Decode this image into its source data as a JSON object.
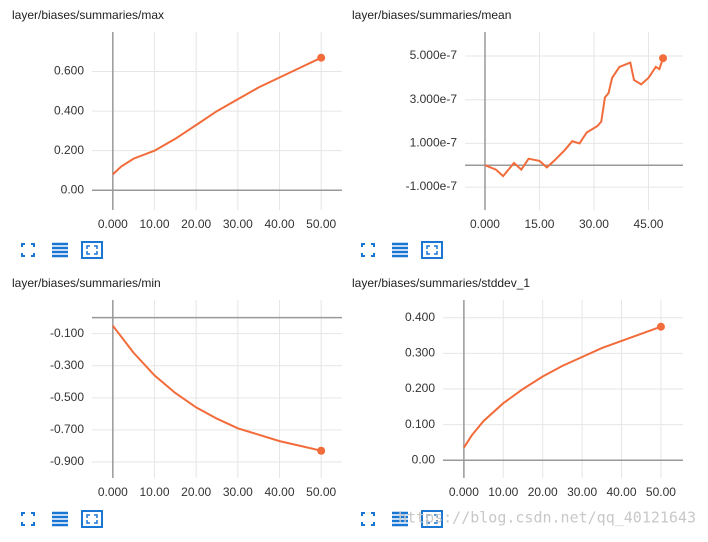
{
  "chart_data": [
    {
      "type": "line",
      "title": "layer/biases/summaries/max",
      "color": "#f26b3a",
      "x": [
        0,
        2,
        5,
        10,
        15,
        20,
        25,
        30,
        35,
        40,
        45,
        50
      ],
      "values": [
        0.08,
        0.12,
        0.16,
        0.2,
        0.26,
        0.33,
        0.4,
        0.46,
        0.52,
        0.57,
        0.62,
        0.67
      ],
      "xlim": [
        -5,
        55
      ],
      "ylim": [
        -0.1,
        0.8
      ],
      "xticks": [
        {
          "value": 0,
          "label": "0.000"
        },
        {
          "value": 10,
          "label": "10.00"
        },
        {
          "value": 20,
          "label": "20.00"
        },
        {
          "value": 30,
          "label": "30.00"
        },
        {
          "value": 40,
          "label": "40.00"
        },
        {
          "value": 50,
          "label": "50.00"
        }
      ],
      "yticks": [
        {
          "value": 0,
          "label": "0.00"
        },
        {
          "value": 0.2,
          "label": "0.200"
        },
        {
          "value": 0.4,
          "label": "0.400"
        },
        {
          "value": 0.6,
          "label": "0.600"
        }
      ],
      "grid": true
    },
    {
      "type": "line",
      "title": "layer/biases/summaries/mean",
      "color": "#f26b3a",
      "x": [
        0,
        3,
        5,
        8,
        10,
        12,
        15,
        17,
        19,
        22,
        24,
        26,
        28,
        31,
        32,
        33,
        34,
        35,
        37,
        40,
        41,
        43,
        45,
        47,
        48,
        49
      ],
      "values": [
        0,
        -2e-08,
        -5e-08,
        1e-08,
        -2e-08,
        3e-08,
        2e-08,
        -1e-08,
        2e-08,
        7e-08,
        1.1e-07,
        1e-07,
        1.5e-07,
        1.8e-07,
        2e-07,
        3.1e-07,
        3.3e-07,
        4e-07,
        4.5e-07,
        4.7e-07,
        3.9e-07,
        3.7e-07,
        4e-07,
        4.5e-07,
        4.4e-07,
        4.9e-07
      ],
      "xlim": [
        -5.5,
        54.5
      ],
      "ylim": [
        -2.05e-07,
        6.1e-07
      ],
      "xticks": [
        {
          "value": 0,
          "label": "0.000"
        },
        {
          "value": 15,
          "label": "15.00"
        },
        {
          "value": 30,
          "label": "30.00"
        },
        {
          "value": 45,
          "label": "45.00"
        }
      ],
      "yticks": [
        {
          "value": -1e-07,
          "label": "-1.000e-7"
        },
        {
          "value": 1e-07,
          "label": "1.000e-7"
        },
        {
          "value": 3e-07,
          "label": "3.000e-7"
        },
        {
          "value": 5e-07,
          "label": "5.000e-7"
        }
      ],
      "grid": true
    },
    {
      "type": "line",
      "title": "layer/biases/summaries/min",
      "color": "#f26b3a",
      "x": [
        0,
        5,
        10,
        15,
        20,
        25,
        30,
        35,
        40,
        45,
        50
      ],
      "values": [
        -0.05,
        -0.22,
        -0.36,
        -0.47,
        -0.56,
        -0.63,
        -0.69,
        -0.73,
        -0.77,
        -0.8,
        -0.83
      ],
      "xlim": [
        -5,
        55
      ],
      "ylim": [
        -1.0,
        0.11
      ],
      "xticks": [
        {
          "value": 0,
          "label": "0.000"
        },
        {
          "value": 10,
          "label": "10.00"
        },
        {
          "value": 20,
          "label": "20.00"
        },
        {
          "value": 30,
          "label": "30.00"
        },
        {
          "value": 40,
          "label": "40.00"
        },
        {
          "value": 50,
          "label": "50.00"
        }
      ],
      "yticks": [
        {
          "value": -0.1,
          "label": "-0.100"
        },
        {
          "value": -0.3,
          "label": "-0.300"
        },
        {
          "value": -0.5,
          "label": "-0.500"
        },
        {
          "value": -0.7,
          "label": "-0.700"
        },
        {
          "value": -0.9,
          "label": "-0.900"
        }
      ],
      "grid": true
    },
    {
      "type": "line",
      "title": "layer/biases/summaries/stddev_1",
      "color": "#f26b3a",
      "x": [
        0,
        2,
        5,
        10,
        15,
        20,
        25,
        30,
        35,
        40,
        45,
        50
      ],
      "values": [
        0.035,
        0.07,
        0.11,
        0.16,
        0.2,
        0.235,
        0.265,
        0.29,
        0.315,
        0.335,
        0.355,
        0.375
      ],
      "xlim": [
        -5.3,
        55.6
      ],
      "ylim": [
        -0.05,
        0.45
      ],
      "xticks": [
        {
          "value": 0,
          "label": "0.000"
        },
        {
          "value": 10,
          "label": "10.00"
        },
        {
          "value": 20,
          "label": "20.00"
        },
        {
          "value": 30,
          "label": "30.00"
        },
        {
          "value": 40,
          "label": "40.00"
        },
        {
          "value": 50,
          "label": "50.00"
        }
      ],
      "yticks": [
        {
          "value": 0,
          "label": "0.00"
        },
        {
          "value": 0.1,
          "label": "0.100"
        },
        {
          "value": 0.2,
          "label": "0.200"
        },
        {
          "value": 0.3,
          "label": "0.300"
        },
        {
          "value": 0.4,
          "label": "0.400"
        }
      ],
      "grid": true
    }
  ],
  "watermark": "https://blog.csdn.net/qq_40121643"
}
